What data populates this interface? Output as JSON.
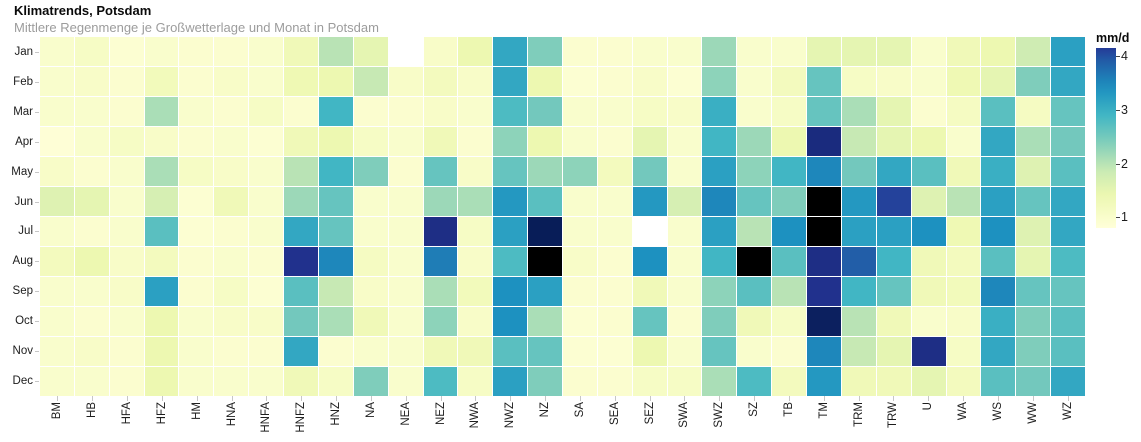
{
  "header": {
    "title": "Klimatrends, Potsdam",
    "subtitle": "Mittlere Regenmenge je Großwetterlage und Monat in Potsdam"
  },
  "legend": {
    "title": "mm/d",
    "ticks": [
      4,
      3,
      2,
      1
    ],
    "bar_min": 0.8,
    "bar_max": 4.15,
    "position": "right"
  },
  "chart_data": {
    "type": "heatmap",
    "title": "Klimatrends, Potsdam",
    "subtitle": "Mittlere Regenmenge je Großwetterlage und Monat in Potsdam",
    "unit": "mm/d",
    "columns": [
      "BM",
      "HB",
      "HFA",
      "HFZ",
      "HM",
      "HNA",
      "HNFA",
      "HNFZ",
      "HNZ",
      "NA",
      "NEA",
      "NEZ",
      "NWA",
      "NWZ",
      "NZ",
      "SA",
      "SEA",
      "SEZ",
      "SWA",
      "SWZ",
      "SZ",
      "TB",
      "TM",
      "TRM",
      "TRW",
      "U",
      "WA",
      "WS",
      "WW",
      "WZ"
    ],
    "rows": [
      "Jan",
      "Feb",
      "Mar",
      "Apr",
      "May",
      "Jun",
      "Jul",
      "Aug",
      "Sep",
      "Oct",
      "Nov",
      "Dec"
    ],
    "values": [
      [
        1.0,
        1.1,
        0.9,
        1.0,
        0.95,
        0.95,
        1.0,
        1.3,
        2.0,
        1.5,
        null,
        1.05,
        1.4,
        3.1,
        2.4,
        0.95,
        0.95,
        1.0,
        1.0,
        2.2,
        1.0,
        1.0,
        1.5,
        1.5,
        1.5,
        1.0,
        1.3,
        1.4,
        1.8,
        3.2
      ],
      [
        1.0,
        1.05,
        0.95,
        1.25,
        0.95,
        1.05,
        1.0,
        1.35,
        1.4,
        1.9,
        1.05,
        1.2,
        1.05,
        3.1,
        1.4,
        0.9,
        0.95,
        1.05,
        0.9,
        2.3,
        1.0,
        1.2,
        2.6,
        1.1,
        1.05,
        1.0,
        1.35,
        1.5,
        2.4,
        3.1
      ],
      [
        1.0,
        1.0,
        0.95,
        2.1,
        1.0,
        0.95,
        1.1,
        0.95,
        2.9,
        0.95,
        0.95,
        1.05,
        1.0,
        2.8,
        2.5,
        1.0,
        1.0,
        1.1,
        1.05,
        3.0,
        1.0,
        1.1,
        2.6,
        2.1,
        1.5,
        0.95,
        1.15,
        2.7,
        1.15,
        2.6
      ],
      [
        0.85,
        1.0,
        1.1,
        1.05,
        0.95,
        1.0,
        0.9,
        1.3,
        1.4,
        1.1,
        1.0,
        1.3,
        0.95,
        2.3,
        1.4,
        1.0,
        0.95,
        1.5,
        1.0,
        2.9,
        2.2,
        1.4,
        4.35,
        1.9,
        1.5,
        1.4,
        1.0,
        3.1,
        2.1,
        2.5
      ],
      [
        1.05,
        0.95,
        1.0,
        2.1,
        1.1,
        1.05,
        1.0,
        2.0,
        2.9,
        2.4,
        0.95,
        2.6,
        1.05,
        2.6,
        2.2,
        2.3,
        1.2,
        2.5,
        1.0,
        3.2,
        2.3,
        2.9,
        3.5,
        2.5,
        3.1,
        2.7,
        1.3,
        3.0,
        1.6,
        2.7
      ],
      [
        1.6,
        1.5,
        1.0,
        1.7,
        0.9,
        1.3,
        1.0,
        2.2,
        2.6,
        1.0,
        1.0,
        2.2,
        2.1,
        3.3,
        2.7,
        1.0,
        1.0,
        3.3,
        1.7,
        3.5,
        2.6,
        2.4,
        5.0,
        3.3,
        4.1,
        1.6,
        2.0,
        3.2,
        2.6,
        3.1
      ],
      [
        1.0,
        0.95,
        1.0,
        2.7,
        0.9,
        0.95,
        1.0,
        3.1,
        2.6,
        1.0,
        1.0,
        4.3,
        1.1,
        3.2,
        4.6,
        1.0,
        1.0,
        null,
        1.0,
        3.2,
        2.0,
        3.4,
        5.0,
        3.2,
        3.2,
        3.4,
        1.35,
        3.4,
        1.6,
        3.1
      ],
      [
        1.2,
        1.4,
        1.05,
        1.2,
        0.95,
        1.0,
        0.95,
        4.25,
        3.5,
        1.15,
        1.0,
        3.6,
        1.05,
        2.8,
        5.0,
        1.05,
        0.95,
        3.4,
        1.0,
        2.9,
        5.0,
        2.7,
        4.3,
        3.9,
        2.9,
        1.3,
        1.2,
        2.7,
        1.5,
        2.8
      ],
      [
        1.0,
        1.0,
        1.05,
        3.2,
        0.95,
        1.1,
        0.9,
        2.7,
        1.9,
        1.05,
        1.0,
        2.1,
        1.25,
        3.4,
        3.2,
        0.95,
        0.95,
        1.3,
        1.0,
        2.3,
        2.7,
        2.0,
        4.25,
        2.9,
        2.6,
        1.3,
        1.25,
        3.5,
        2.6,
        2.6
      ],
      [
        1.0,
        0.95,
        1.0,
        1.4,
        1.0,
        1.05,
        1.05,
        2.5,
        2.1,
        1.3,
        1.0,
        2.3,
        1.05,
        3.4,
        2.1,
        0.9,
        0.95,
        2.6,
        0.95,
        2.4,
        1.3,
        1.1,
        4.55,
        2.0,
        1.3,
        1.0,
        1.05,
        3.0,
        2.4,
        2.7
      ],
      [
        1.0,
        1.05,
        0.95,
        1.4,
        1.0,
        0.95,
        0.95,
        3.1,
        0.95,
        1.0,
        1.0,
        1.3,
        1.3,
        2.7,
        2.6,
        0.9,
        0.9,
        1.4,
        1.0,
        2.6,
        1.0,
        0.95,
        3.5,
        1.9,
        1.5,
        4.3,
        1.1,
        3.1,
        2.4,
        2.7
      ],
      [
        1.0,
        1.0,
        0.95,
        1.4,
        1.0,
        1.0,
        1.0,
        1.3,
        1.1,
        2.4,
        1.0,
        2.8,
        1.1,
        3.2,
        2.4,
        0.95,
        0.95,
        1.1,
        1.1,
        2.1,
        2.8,
        1.2,
        3.3,
        1.3,
        1.3,
        1.5,
        1.2,
        2.7,
        2.5,
        3.1
      ]
    ],
    "missing_value_color": "#ffffff",
    "colormap": {
      "name": "YlGnBu-extended",
      "stops": [
        [
          0.8,
          "#ffffd9"
        ],
        [
          1.4,
          "#edf8b1"
        ],
        [
          1.9,
          "#c7e9b4"
        ],
        [
          2.4,
          "#7fcdbb"
        ],
        [
          2.9,
          "#41b6c4"
        ],
        [
          3.4,
          "#1d91c0"
        ],
        [
          3.9,
          "#225ea8"
        ],
        [
          4.2,
          "#253494"
        ],
        [
          4.6,
          "#081d58"
        ],
        [
          5.0,
          "#000000"
        ]
      ]
    },
    "legend_position": "right",
    "grid": false
  }
}
